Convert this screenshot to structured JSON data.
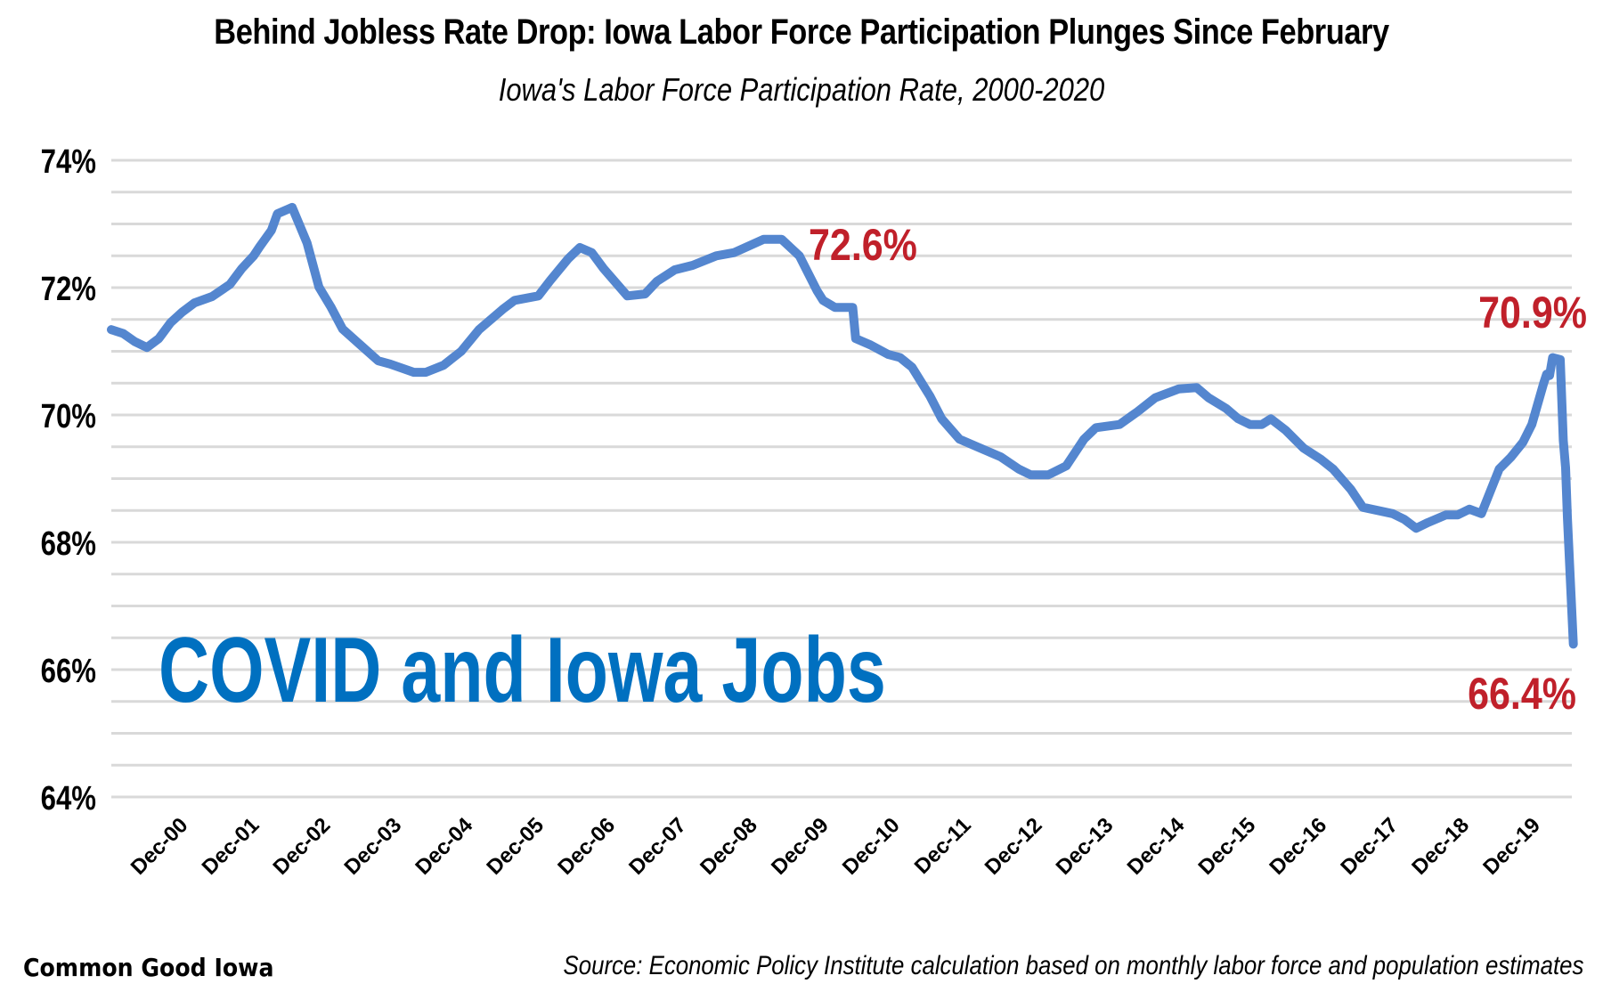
{
  "chart_data": {
    "type": "line",
    "title": "Behind Jobless Rate Drop: Iowa Labor Force Participation Plunges Since February",
    "subtitle": "Iowa's Labor Force Participation Rate, 2000-2020",
    "xlabel": "",
    "ylabel": "",
    "ylim": [
      64,
      74
    ],
    "y_ticks": [
      64,
      66,
      68,
      70,
      72,
      74
    ],
    "y_tick_labels": [
      "64%",
      "66%",
      "68%",
      "70%",
      "72%",
      "74%"
    ],
    "y_minor_gridlines_every": 0.5,
    "grid": true,
    "x_unit": "months since Jan 2000",
    "x_range": [
      0,
      245
    ],
    "x_ticks": [
      11,
      23,
      35,
      47,
      59,
      71,
      83,
      95,
      107,
      119,
      131,
      143,
      155,
      167,
      179,
      191,
      203,
      215,
      227,
      239
    ],
    "x_tick_labels": [
      "Dec-00",
      "Dec-01",
      "Dec-02",
      "Dec-03",
      "Dec-04",
      "Dec-05",
      "Dec-06",
      "Dec-07",
      "Dec-08",
      "Dec-09",
      "Dec-10",
      "Dec-11",
      "Dec-12",
      "Dec-13",
      "Dec-14",
      "Dec-15",
      "Dec-16",
      "Dec-17",
      "Dec-18",
      "Dec-19"
    ],
    "series": [
      {
        "name": "Iowa Labor Force Participation Rate",
        "color": "#5486cf",
        "points": [
          [
            0,
            71.34
          ],
          [
            2,
            71.28
          ],
          [
            4,
            71.15
          ],
          [
            6,
            71.06
          ],
          [
            8,
            71.2
          ],
          [
            10,
            71.45
          ],
          [
            12,
            71.62
          ],
          [
            14,
            71.76
          ],
          [
            17,
            71.86
          ],
          [
            20,
            72.05
          ],
          [
            22,
            72.3
          ],
          [
            24,
            72.5
          ],
          [
            25,
            72.64
          ],
          [
            27,
            72.9
          ],
          [
            28,
            73.16
          ],
          [
            30,
            73.24
          ],
          [
            30.5,
            73.26
          ],
          [
            33,
            72.7
          ],
          [
            35,
            72.01
          ],
          [
            37,
            71.7
          ],
          [
            39,
            71.35
          ],
          [
            42,
            71.1
          ],
          [
            45,
            70.85
          ],
          [
            47,
            70.8
          ],
          [
            51,
            70.67
          ],
          [
            53,
            70.67
          ],
          [
            56,
            70.78
          ],
          [
            59,
            71.0
          ],
          [
            62,
            71.34
          ],
          [
            66,
            71.66
          ],
          [
            68,
            71.8
          ],
          [
            72,
            71.87
          ],
          [
            74,
            72.11
          ],
          [
            77,
            72.45
          ],
          [
            79,
            72.63
          ],
          [
            81,
            72.55
          ],
          [
            83,
            72.3
          ],
          [
            87,
            71.87
          ],
          [
            90,
            71.9
          ],
          [
            92,
            72.1
          ],
          [
            95,
            72.28
          ],
          [
            98,
            72.35
          ],
          [
            102,
            72.5
          ],
          [
            105,
            72.55
          ],
          [
            110,
            72.76
          ],
          [
            113,
            72.76
          ],
          [
            116,
            72.5
          ],
          [
            119,
            71.95
          ],
          [
            120,
            71.8
          ],
          [
            122,
            71.69
          ],
          [
            125,
            71.69
          ],
          [
            125.5,
            71.2
          ],
          [
            128,
            71.1
          ],
          [
            131,
            70.95
          ],
          [
            133,
            70.9
          ],
          [
            135,
            70.75
          ],
          [
            138,
            70.3
          ],
          [
            140,
            69.94
          ],
          [
            143,
            69.62
          ],
          [
            146,
            69.5
          ],
          [
            150,
            69.34
          ],
          [
            153,
            69.15
          ],
          [
            155,
            69.06
          ],
          [
            158,
            69.06
          ],
          [
            161,
            69.2
          ],
          [
            164,
            69.62
          ],
          [
            166,
            69.8
          ],
          [
            170,
            69.85
          ],
          [
            173,
            70.05
          ],
          [
            176,
            70.27
          ],
          [
            180,
            70.41
          ],
          [
            183,
            70.43
          ],
          [
            185,
            70.27
          ],
          [
            188,
            70.1
          ],
          [
            190,
            69.94
          ],
          [
            192,
            69.85
          ],
          [
            194,
            69.85
          ],
          [
            195.5,
            69.94
          ],
          [
            198,
            69.76
          ],
          [
            201,
            69.48
          ],
          [
            204,
            69.3
          ],
          [
            206,
            69.15
          ],
          [
            209,
            68.83
          ],
          [
            211,
            68.55
          ],
          [
            216,
            68.45
          ],
          [
            218,
            68.36
          ],
          [
            220,
            68.22
          ],
          [
            222,
            68.31
          ],
          [
            225,
            68.43
          ],
          [
            227,
            68.43
          ],
          [
            229,
            68.52
          ],
          [
            231,
            68.45
          ],
          [
            234,
            69.15
          ],
          [
            236,
            69.34
          ],
          [
            238,
            69.57
          ],
          [
            239.5,
            69.85
          ],
          [
            241.5,
            70.5
          ],
          [
            242,
            70.64
          ],
          [
            242.5,
            70.62
          ],
          [
            243,
            70.9
          ],
          [
            244.3,
            70.87
          ],
          [
            244.8,
            69.6
          ],
          [
            245.2,
            69.17
          ],
          [
            245.5,
            68.4
          ],
          [
            246.5,
            66.4
          ]
        ]
      }
    ],
    "annotations": [
      {
        "text": "72.6%",
        "at": [
          131,
          72.6
        ],
        "color": "#c0202a"
      },
      {
        "text": "70.9%",
        "at": [
          243,
          70.9
        ],
        "color": "#c0202a"
      },
      {
        "text": "66.4%",
        "at": [
          246.5,
          66.4
        ],
        "color": "#c0202a"
      }
    ],
    "watermark": {
      "text": "COVID and Iowa Jobs",
      "color": "#0070c0"
    }
  },
  "footer": {
    "brand": "Common Good Iowa",
    "source": "Source: Economic Policy Institute calculation based on monthly labor force and population estimates"
  }
}
